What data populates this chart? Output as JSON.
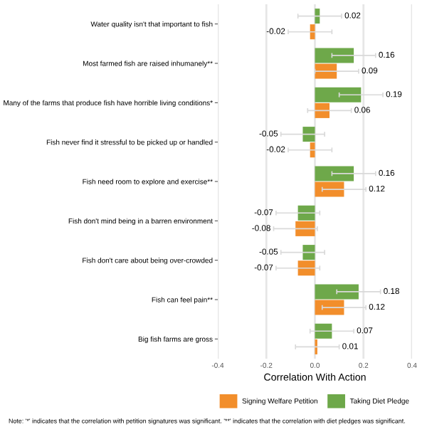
{
  "chart_data": {
    "type": "bar",
    "orientation": "horizontal",
    "xlabel": "Correlation With Action",
    "categories": [
      "Water quality isn't that important to fish",
      "Most farmed fish are raised inhumanely**",
      "Many of the farms that produce fish have horrible living conditions*",
      "Fish never find it stressful to be picked up or handled",
      "Fish need room to explore and exercise**",
      "Fish don't mind being in a barren environment",
      "Fish don't care about being over-crowded",
      "Fish can feel pain**",
      "Big fish farms are gross"
    ],
    "series": [
      {
        "name": "Signing Welfare Petition",
        "color": "#f28e2b",
        "values": [
          -0.02,
          0.09,
          0.06,
          -0.02,
          0.12,
          -0.08,
          -0.07,
          0.12,
          0.01
        ],
        "errors": [
          0.09,
          0.09,
          0.09,
          0.09,
          0.09,
          0.09,
          0.09,
          0.09,
          0.09
        ]
      },
      {
        "name": "Taking Diet Pledge",
        "color": "#6ea84a",
        "values": [
          0.02,
          0.16,
          0.19,
          -0.05,
          0.16,
          -0.07,
          -0.05,
          0.18,
          0.07
        ],
        "errors": [
          0.09,
          0.09,
          0.09,
          0.09,
          0.09,
          0.09,
          0.09,
          0.09,
          0.09
        ]
      }
    ],
    "xlim": [
      -0.4,
      0.4
    ],
    "xticks": [
      -0.4,
      -0.2,
      {
        "value": 0,
        "label": "0.0"
      },
      0.2,
      0.4
    ],
    "grid": "x",
    "legend": "bottom",
    "data_labels": true,
    "annotations": [
      "Note: '*' indicates that the correlation with petition signatures was significant. '**' indicates that the correlation with diet pledges was significant."
    ]
  }
}
